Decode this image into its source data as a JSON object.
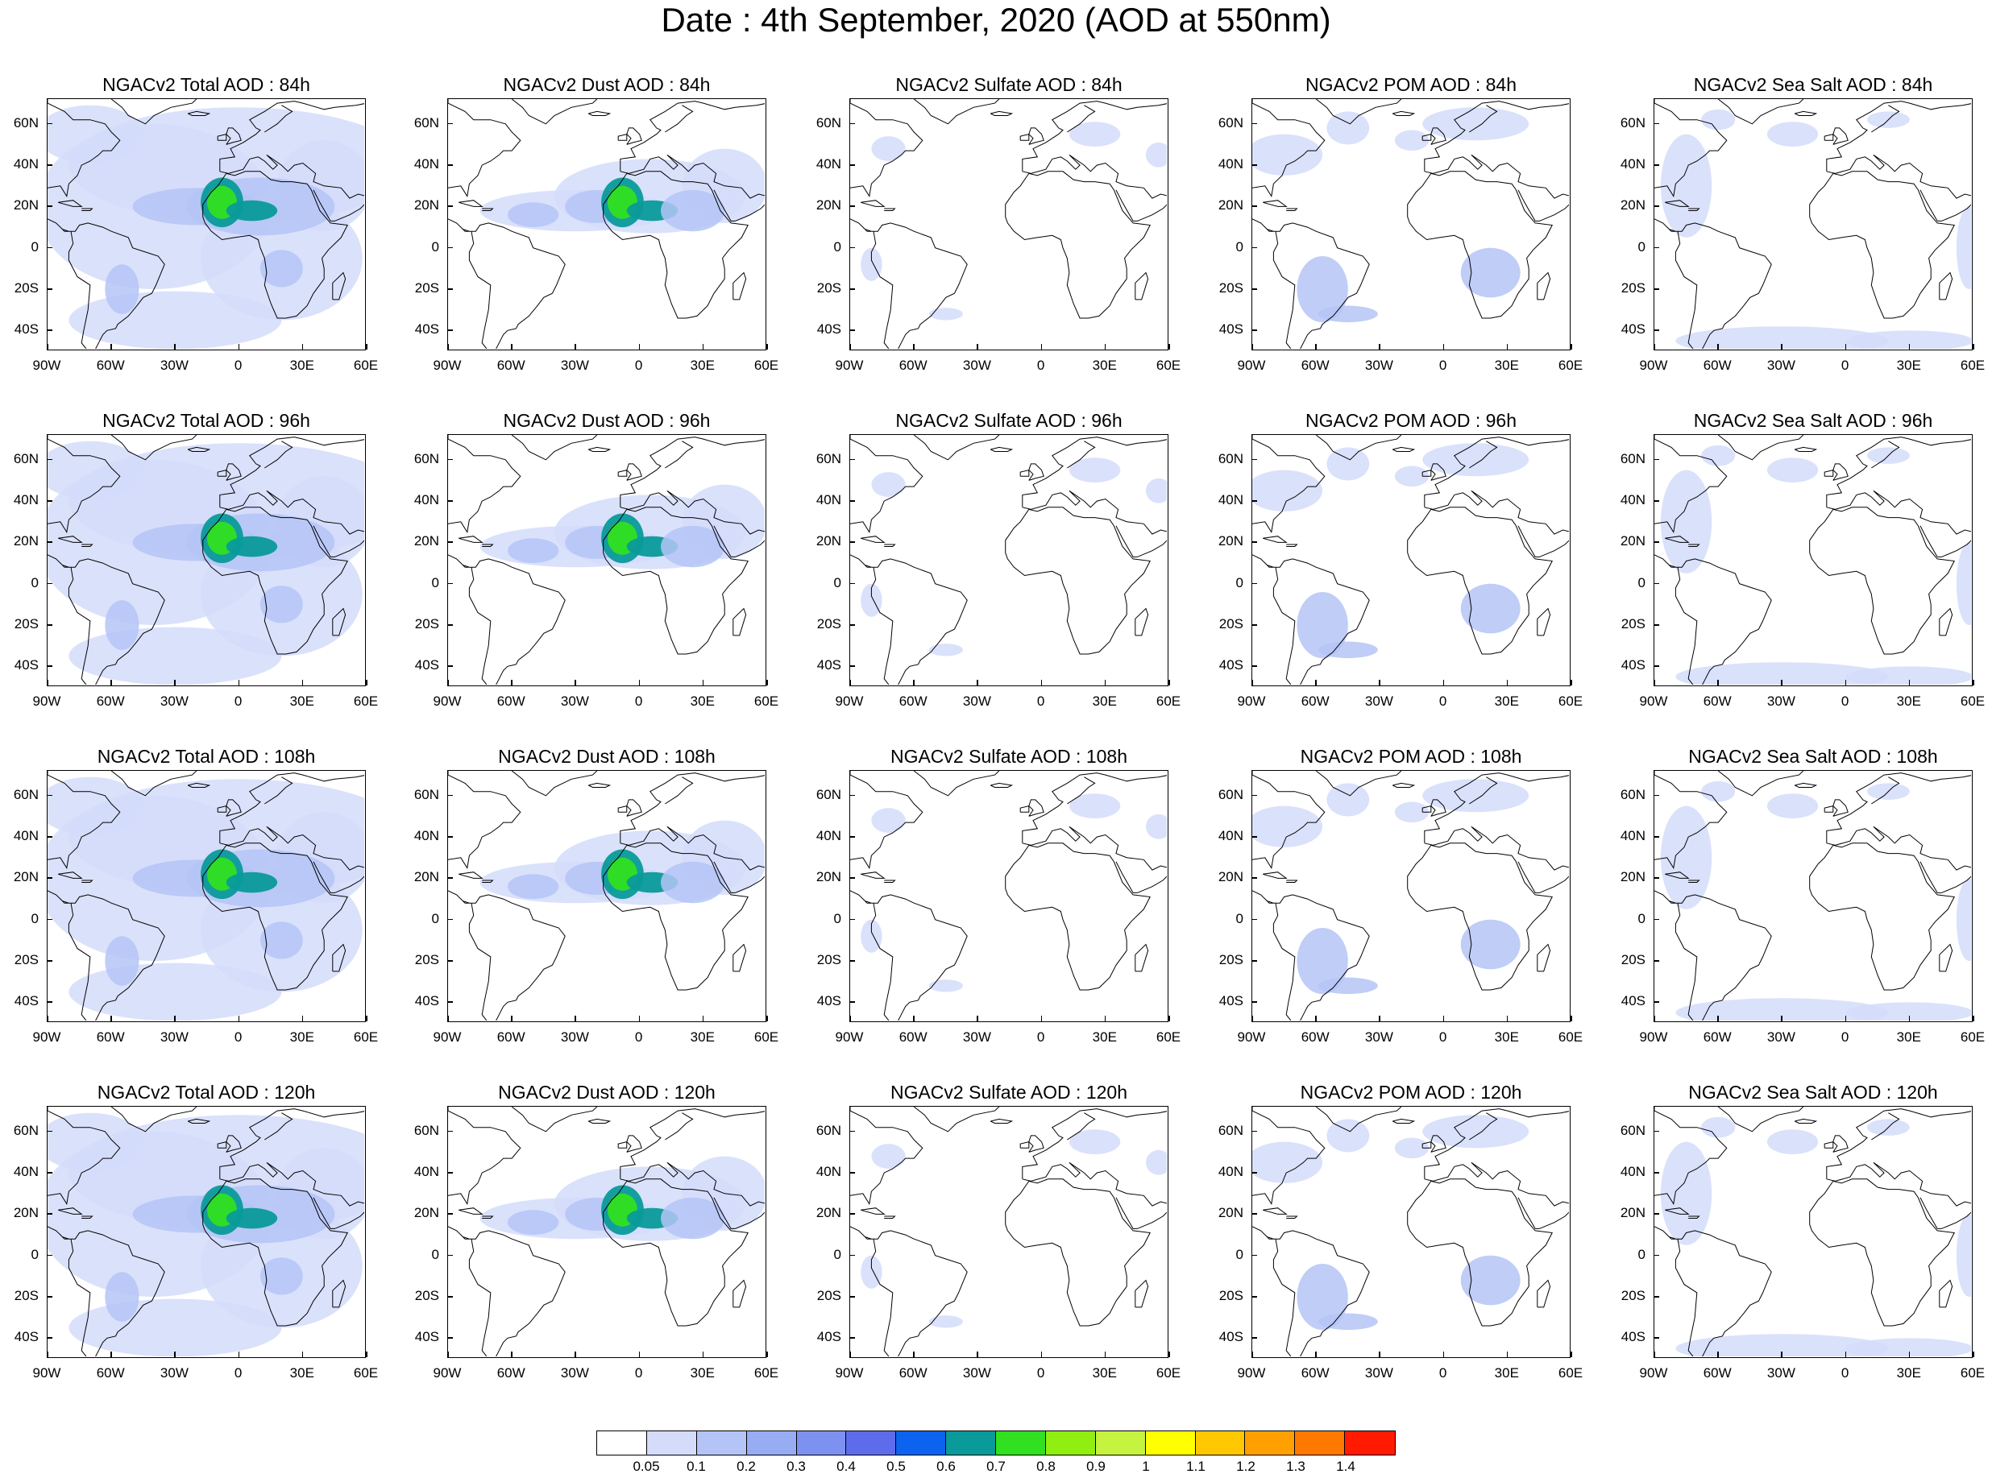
{
  "title": "Date : 4th September, 2020 (AOD at 550nm)",
  "panels": [
    {
      "title": "NGACv2 Total AOD : 84h",
      "field": "total"
    },
    {
      "title": "NGACv2 Dust AOD : 84h",
      "field": "dust"
    },
    {
      "title": "NGACv2 Sulfate AOD : 84h",
      "field": "sulfate"
    },
    {
      "title": "NGACv2 POM AOD : 84h",
      "field": "pom"
    },
    {
      "title": "NGACv2 Sea Salt AOD : 84h",
      "field": "seasalt"
    },
    {
      "title": "NGACv2 Total AOD : 96h",
      "field": "total"
    },
    {
      "title": "NGACv2 Dust AOD : 96h",
      "field": "dust"
    },
    {
      "title": "NGACv2 Sulfate AOD : 96h",
      "field": "sulfate"
    },
    {
      "title": "NGACv2 POM AOD : 96h",
      "field": "pom"
    },
    {
      "title": "NGACv2 Sea Salt AOD : 96h",
      "field": "seasalt"
    },
    {
      "title": "NGACv2 Total AOD : 108h",
      "field": "total"
    },
    {
      "title": "NGACv2 Dust AOD : 108h",
      "field": "dust"
    },
    {
      "title": "NGACv2 Sulfate AOD : 108h",
      "field": "sulfate"
    },
    {
      "title": "NGACv2 POM AOD : 108h",
      "field": "pom"
    },
    {
      "title": "NGACv2 Sea Salt AOD : 108h",
      "field": "seasalt"
    },
    {
      "title": "NGACv2 Total AOD : 120h",
      "field": "total"
    },
    {
      "title": "NGACv2 Dust AOD : 120h",
      "field": "dust"
    },
    {
      "title": "NGACv2 Sulfate AOD : 120h",
      "field": "sulfate"
    },
    {
      "title": "NGACv2 POM AOD : 120h",
      "field": "pom"
    },
    {
      "title": "NGACv2 Sea Salt  AOD : 120h",
      "field": "seasalt"
    }
  ],
  "lat_labels": [
    "60N",
    "40N",
    "20N",
    "0",
    "20S",
    "40S"
  ],
  "lon_labels": [
    "90W",
    "60W",
    "30W",
    "0",
    "30E",
    "60E"
  ],
  "colorbar": {
    "labels": [
      "0.05",
      "0.1",
      "0.2",
      "0.3",
      "0.4",
      "0.5",
      "0.6",
      "0.7",
      "0.8",
      "0.9",
      "1",
      "1.1",
      "1.2",
      "1.3",
      "1.4"
    ],
    "colors": [
      "#ffffff",
      "#d4dcfa",
      "#b4c4f6",
      "#98acf4",
      "#7d92f0",
      "#5e6ceb",
      "#0b63f0",
      "#0a9a9a",
      "#31e020",
      "#90ee10",
      "#c6f240",
      "#ffff00",
      "#ffc800",
      "#ffa000",
      "#ff7800",
      "#ff1a00"
    ]
  }
}
